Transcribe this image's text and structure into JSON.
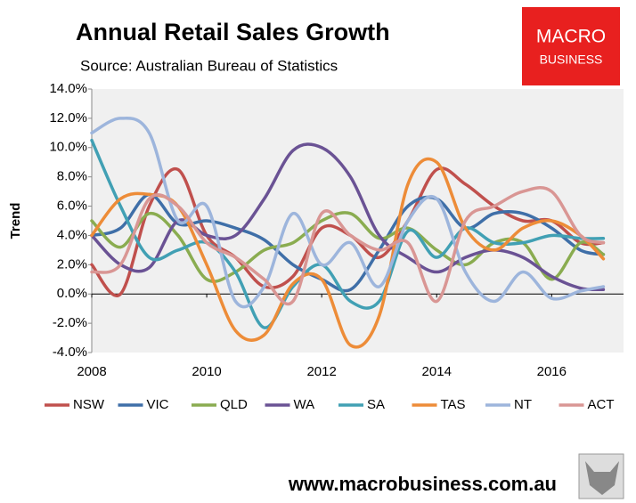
{
  "chart_data": {
    "type": "line",
    "title": "Annual Retail Sales Growth",
    "subtitle": "Source: Australian Bureau of Statistics",
    "y_label": "Trend",
    "x": [
      2008,
      2008.5,
      2009,
      2009.5,
      2010,
      2010.5,
      2011,
      2011.5,
      2012,
      2012.5,
      2013,
      2013.5,
      2014,
      2014.5,
      2015,
      2015.5,
      2016,
      2016.5,
      2016.9
    ],
    "xlim": [
      2008,
      2017.25
    ],
    "xticks": [
      2008,
      2010,
      2012,
      2014,
      2016
    ],
    "ylim": [
      -4,
      14
    ],
    "yticks": [
      {
        "value": -4,
        "label": "-4.0%"
      },
      {
        "value": -2,
        "label": "-2.0%"
      },
      {
        "value": 0,
        "label": "0.0%"
      },
      {
        "value": 2,
        "label": "2.0%"
      },
      {
        "value": 4,
        "label": "4.0%"
      },
      {
        "value": 6,
        "label": "6.0%"
      },
      {
        "value": 8,
        "label": "8.0%"
      },
      {
        "value": 10,
        "label": "10.0%"
      },
      {
        "value": 12,
        "label": "12.0%"
      },
      {
        "value": 14,
        "label": "14.0%"
      }
    ],
    "grid": false,
    "legend": "bottom",
    "series": [
      {
        "name": "NSW",
        "color": "#c0504d",
        "values": [
          2,
          0,
          6,
          8.5,
          4,
          2.5,
          0.5,
          1.2,
          4.5,
          4,
          2.5,
          5,
          8.5,
          7.5,
          6,
          5,
          5,
          3.5,
          3.5
        ]
      },
      {
        "name": "VIC",
        "color": "#3f6fa8",
        "values": [
          4,
          4.5,
          6.8,
          4.8,
          5,
          4.5,
          3.7,
          2,
          1,
          0.3,
          3,
          6,
          6.5,
          4.5,
          5.5,
          5.5,
          4.5,
          3,
          2.7
        ]
      },
      {
        "name": "QLD",
        "color": "#8aac50",
        "values": [
          5,
          3.2,
          5.5,
          4,
          1,
          1.5,
          3,
          3.5,
          5,
          5.5,
          3.8,
          4.5,
          3,
          2,
          3.5,
          3.5,
          1,
          3.5,
          2.7
        ]
      },
      {
        "name": "WA",
        "color": "#6a5294",
        "values": [
          4,
          2,
          1.8,
          5,
          4,
          4,
          6.5,
          9.8,
          10,
          8,
          4,
          2.5,
          1.5,
          2.5,
          3,
          2.5,
          1.2,
          0.4,
          0.3
        ]
      },
      {
        "name": "SA",
        "color": "#41a0b4",
        "values": [
          10.5,
          6,
          2.5,
          3,
          3.5,
          1.5,
          -2.3,
          0.5,
          2,
          -0.5,
          -0.5,
          4.3,
          2.5,
          4.5,
          3.5,
          3.5,
          4,
          3.8,
          3.8
        ]
      },
      {
        "name": "TAS",
        "color": "#ed8c38",
        "values": [
          4,
          6.5,
          6.8,
          6,
          2,
          -2.5,
          -2.8,
          0.7,
          1,
          -3.5,
          -1.5,
          7.5,
          9,
          4.5,
          3,
          4.5,
          5,
          4,
          2.4
        ]
      },
      {
        "name": "NT",
        "color": "#9db5dc",
        "values": [
          11,
          12,
          11,
          5,
          6,
          -0.5,
          0.5,
          5.5,
          2,
          3.5,
          0.5,
          5,
          6.5,
          1.5,
          -0.5,
          1.5,
          -0.3,
          0.2,
          0.5
        ]
      },
      {
        "name": "ACT",
        "color": "#d99694",
        "values": [
          1.5,
          2,
          6.5,
          6,
          3.5,
          2.5,
          1,
          -0.5,
          5.5,
          4,
          3,
          3.5,
          -0.5,
          5,
          6,
          7,
          7,
          4,
          3.5
        ]
      }
    ]
  },
  "logo": {
    "line1": "MACRO",
    "line2": "BUSINESS"
  },
  "footer": "www.macrobusiness.com.au"
}
